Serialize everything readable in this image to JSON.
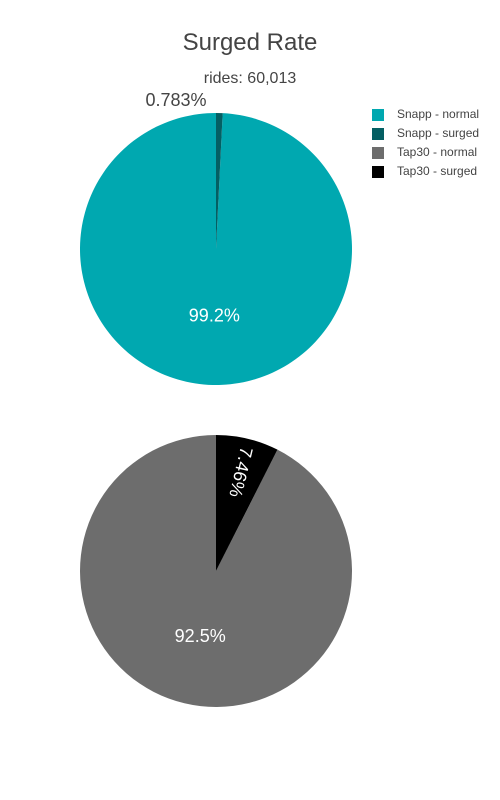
{
  "chart_data": [
    {
      "type": "pie",
      "title": "Surged Rate",
      "subtitle": "rides: 60,013",
      "slices": [
        {
          "name": "Snapp - normal",
          "value": 99.2,
          "label": "99.2%",
          "color": "#00a8b0"
        },
        {
          "name": "Snapp - surged",
          "value": 0.783,
          "label": "0.783%",
          "color": "#045f63"
        }
      ]
    },
    {
      "type": "pie",
      "title": "",
      "subtitle": "",
      "slices": [
        {
          "name": "Tap30 - normal",
          "value": 92.5,
          "label": "92.5%",
          "color": "#6d6d6d"
        },
        {
          "name": "Tap30 - surged",
          "value": 7.46,
          "label": "7.46%",
          "color": "#000000"
        }
      ]
    }
  ],
  "legend": {
    "placement": "top-right",
    "items": [
      {
        "name": "Snapp - normal",
        "color": "#00a8b0"
      },
      {
        "name": "Snapp - surged",
        "color": "#045f63"
      },
      {
        "name": "Tap30 - normal",
        "color": "#6d6d6d"
      },
      {
        "name": "Tap30 - surged",
        "color": "#000000"
      }
    ]
  }
}
